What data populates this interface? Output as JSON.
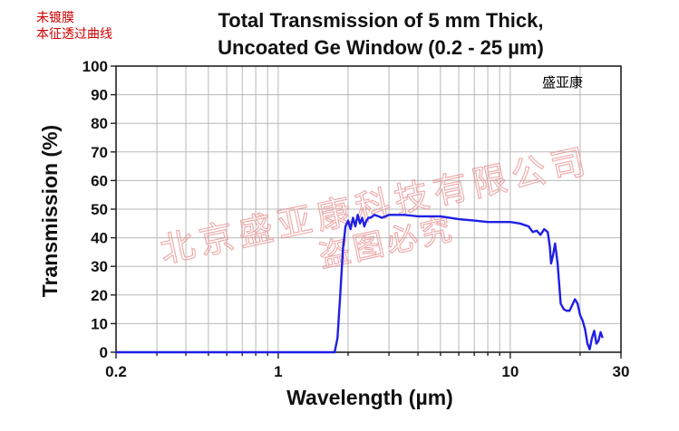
{
  "corner_text": {
    "line1": "未镀膜",
    "line2": "本征透过曲线"
  },
  "brand_label": "盛亚康",
  "watermark": {
    "line1": "北京盛亚康科技有限公司",
    "line2": "盗图必究"
  },
  "colors": {
    "series": "#1f1fe6",
    "grid": "#b8b8b8",
    "axis": "#222222",
    "watermark": "#e88a8a",
    "corner_text": "#cc0000"
  },
  "chart_data": {
    "type": "line",
    "title": "Total Transmission of 5 mm Thick, Uncoated Ge Window (0.2 - 25 µm)",
    "title_lines": [
      "Total Transmission of 5 mm Thick,",
      "Uncoated Ge Window (0.2 - 25 µm)"
    ],
    "xlabel": "Wavelength (µm)",
    "ylabel": "Transmission (%)",
    "xscale": "log",
    "xlim": [
      0.2,
      30
    ],
    "ylim": [
      0,
      100
    ],
    "x_ticks": [
      0.2,
      1,
      10,
      30
    ],
    "x_tick_labels": [
      "0.2",
      "1",
      "10",
      "30"
    ],
    "y_ticks": [
      0,
      10,
      20,
      30,
      40,
      50,
      60,
      70,
      80,
      90,
      100
    ],
    "grid": true,
    "series": [
      {
        "name": "Uncoated Ge, 5 mm",
        "x": [
          0.2,
          1.0,
          1.6,
          1.75,
          1.8,
          1.85,
          1.9,
          1.95,
          2.0,
          2.05,
          2.1,
          2.15,
          2.2,
          2.25,
          2.3,
          2.35,
          2.4,
          2.45,
          2.5,
          2.6,
          2.8,
          3.0,
          3.5,
          4.0,
          5.0,
          6.0,
          7.0,
          8.0,
          9.0,
          10.0,
          11.0,
          12.0,
          12.5,
          13.0,
          13.5,
          14.0,
          14.5,
          14.8,
          15.0,
          15.3,
          15.6,
          16.0,
          16.5,
          17.0,
          17.5,
          18.0,
          18.5,
          19.0,
          19.5,
          20.0,
          20.5,
          21.0,
          21.5,
          22.0,
          22.5,
          23.0,
          23.5,
          24.0,
          24.5,
          25.0
        ],
        "values": [
          0,
          0,
          0,
          0,
          5,
          20,
          36,
          44,
          46,
          43,
          47,
          44,
          48,
          45,
          47,
          44,
          46,
          47,
          47,
          48,
          47,
          48,
          48,
          47.5,
          47.5,
          46.5,
          46,
          45.5,
          45.5,
          45.5,
          45,
          44,
          42,
          42.5,
          41,
          43,
          42,
          37,
          31,
          34,
          38,
          31,
          17,
          15,
          14.5,
          14.5,
          16.5,
          18.5,
          17,
          13,
          11,
          8,
          3,
          1,
          5,
          7.5,
          3,
          4,
          7,
          5
        ]
      }
    ]
  }
}
